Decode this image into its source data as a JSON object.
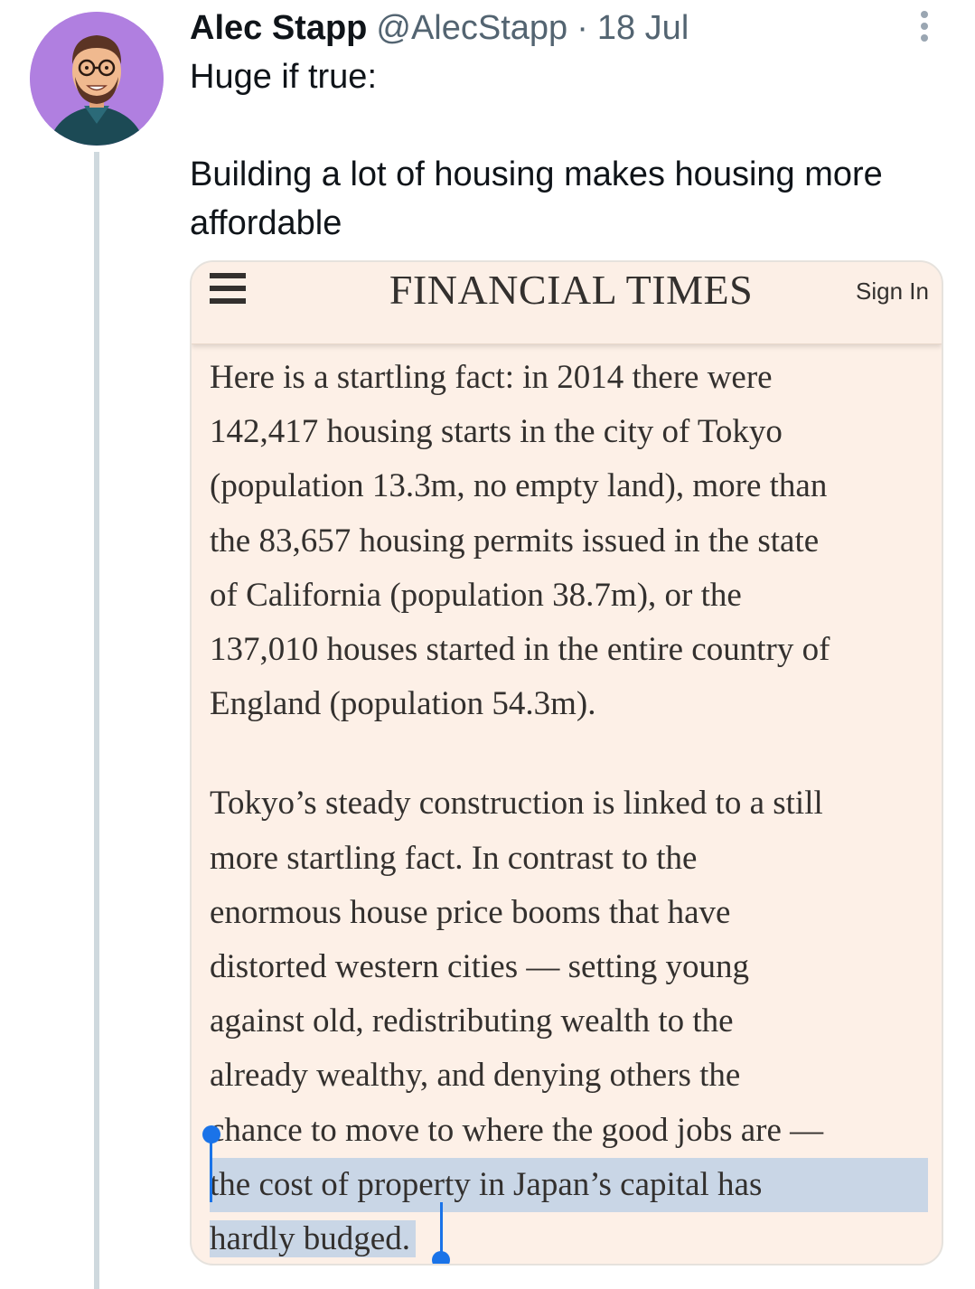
{
  "tweet": {
    "author_name": "Alec Stapp",
    "author_handle": "@AlecStapp",
    "separator": "·",
    "date": "18 Jul",
    "text": "Huge if true:\n\nBuilding a lot of housing makes housing more\naffordable"
  },
  "embed": {
    "publication": "FINANCIAL TIMES",
    "sign_in_label": "Sign In",
    "paragraph1_lines": [
      "Here is a startling fact: in 2014 there were",
      "142,417 housing starts in the city of Tokyo",
      "(population 13.3m, no empty land), more than",
      "the 83,657 housing permits issued in the state",
      "of California (population 38.7m), or the",
      "137,010 houses started in the entire country of",
      "England (population 54.3m)."
    ],
    "paragraph2_lines": [
      "Tokyo’s steady construction is linked to a still",
      "more startling fact. In contrast to the",
      "enormous house price booms that have",
      "distorted western cities — setting young",
      "against old, redistributing wealth to the",
      "already wealthy, and denying others the",
      "chance to move to where the good jobs are —"
    ],
    "selected_lines": [
      "the cost of property in Japan’s capital has",
      "hardly budged."
    ]
  },
  "colors": {
    "avatar_bg": "#b07fe0",
    "card_bg": "#fdf0e7",
    "selection": "#c9d6e6",
    "selection_handle": "#1a73e8",
    "handle_text": "#536471",
    "thread_line": "#cfd9de"
  },
  "icons": {
    "more": "vertical-ellipsis",
    "menu": "hamburger",
    "avatar": "cartoon-portrait"
  }
}
